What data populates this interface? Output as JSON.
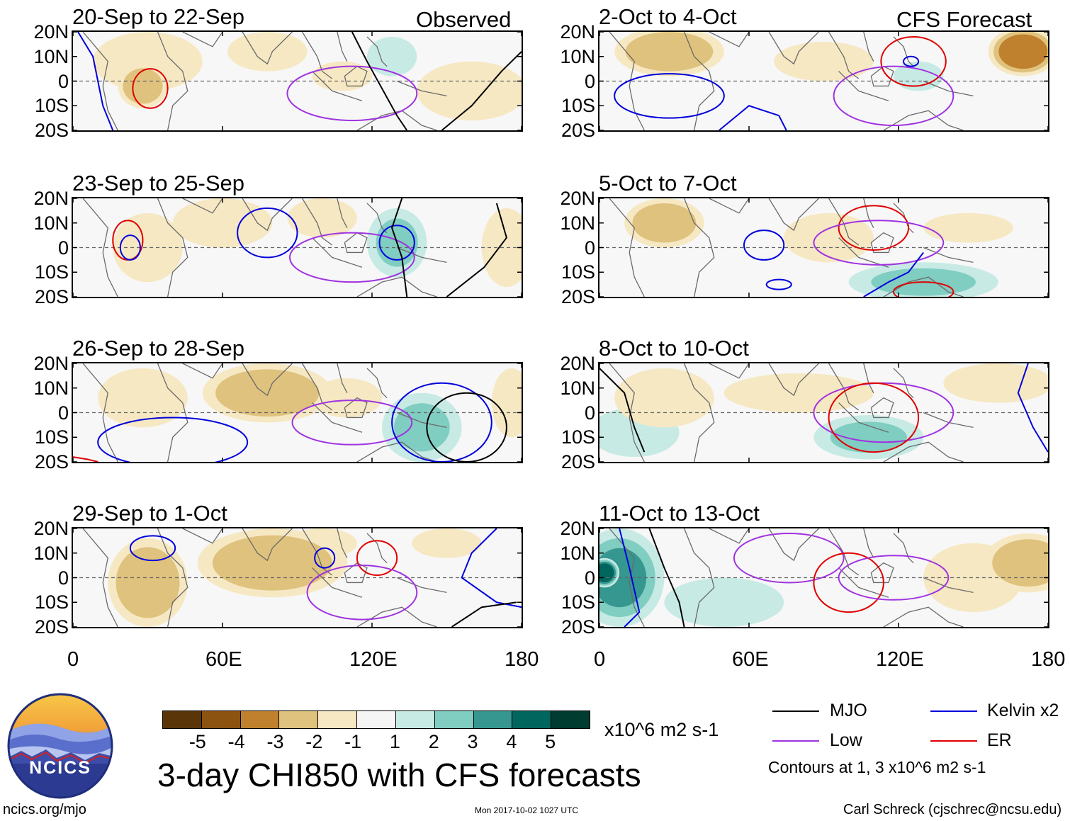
{
  "headers": {
    "observed": "Observed",
    "forecast": "CFS Forecast"
  },
  "chart_data": {
    "type": "heatmap",
    "title": "3-day CHI850 with CFS forecasts",
    "units": "x10^6 m2 s-1",
    "lat_labels": [
      "20N",
      "10N",
      "0",
      "10S",
      "20S"
    ],
    "lon_labels": [
      "0",
      "60E",
      "120E",
      "180"
    ],
    "xlim": [
      0,
      180
    ],
    "ylim": [
      -20,
      20
    ],
    "colorbar": {
      "ticks": [
        "-5",
        "-4",
        "-3",
        "-2",
        "-1",
        "1",
        "2",
        "3",
        "4",
        "5"
      ],
      "colors": [
        "#5a3508",
        "#8c520f",
        "#bf812d",
        "#dfc27d",
        "#f6e8c3",
        "#f5f5f5",
        "#c7eae5",
        "#80cdc1",
        "#35978f",
        "#01665e",
        "#003c30"
      ]
    },
    "legend": [
      {
        "label": "MJO",
        "color": "#000000"
      },
      {
        "label": "Kelvin x2",
        "color": "#0000dd"
      },
      {
        "label": "Low",
        "color": "#a033e0"
      },
      {
        "label": "ER",
        "color": "#e00000"
      }
    ],
    "contour_note": "Contours at 1, 3 x10^6 m2 s-1",
    "panels": [
      {
        "id": "obs1",
        "kind": "observed",
        "title": "20-Sep to 22-Sep",
        "blobs": [
          {
            "lon": 30,
            "lat": 8,
            "rlon": 22,
            "rlat": 12,
            "v": -2
          },
          {
            "lon": 28,
            "lat": -2,
            "rlon": 10,
            "rlat": 9,
            "v": -3
          },
          {
            "lon": 78,
            "lat": 12,
            "rlon": 16,
            "rlat": 8,
            "v": -1.5
          },
          {
            "lon": 108,
            "lat": 2,
            "rlon": 12,
            "rlat": 6,
            "v": -1.5
          },
          {
            "lon": 128,
            "lat": 10,
            "rlon": 10,
            "rlat": 8,
            "v": 1.5
          },
          {
            "lon": 160,
            "lat": -4,
            "rlon": 22,
            "rlat": 12,
            "v": -1.5
          }
        ],
        "contours": [
          {
            "type": "ER",
            "lon": 31,
            "lat": -3,
            "rlon": 7,
            "rlat": 8
          },
          {
            "type": "Low",
            "lon": 112,
            "lat": -5,
            "rlon": 26,
            "rlat": 11
          },
          {
            "type": "MJO",
            "path": [
              [
                112,
                20
              ],
              [
                118,
                8
              ],
              [
                124,
                -3
              ],
              [
                130,
                -14
              ],
              [
                134,
                -20
              ]
            ]
          },
          {
            "type": "MJO",
            "path": [
              [
                148,
                -20
              ],
              [
                160,
                -10
              ],
              [
                172,
                4
              ],
              [
                180,
                12
              ]
            ]
          },
          {
            "type": "Kelvin",
            "path": [
              [
                2,
                20
              ],
              [
                8,
                10
              ],
              [
                10,
                0
              ],
              [
                12,
                -10
              ],
              [
                16,
                -20
              ]
            ]
          }
        ]
      },
      {
        "id": "obs2",
        "kind": "observed",
        "title": "23-Sep to 25-Sep",
        "blobs": [
          {
            "lon": 30,
            "lat": 0,
            "rlon": 14,
            "rlat": 14,
            "v": -1.5
          },
          {
            "lon": 60,
            "lat": 10,
            "rlon": 20,
            "rlat": 10,
            "v": -1.5
          },
          {
            "lon": 100,
            "lat": 12,
            "rlon": 14,
            "rlat": 8,
            "v": -1.5
          },
          {
            "lon": 130,
            "lat": 2,
            "rlon": 12,
            "rlat": 14,
            "v": 2
          },
          {
            "lon": 174,
            "lat": 0,
            "rlon": 10,
            "rlat": 16,
            "v": -2
          }
        ],
        "contours": [
          {
            "type": "ER",
            "lon": 22,
            "lat": 3,
            "rlon": 6,
            "rlat": 8
          },
          {
            "type": "Kelvin",
            "lon": 23,
            "lat": 0,
            "rlon": 4,
            "rlat": 5
          },
          {
            "type": "Kelvin",
            "lon": 78,
            "lat": 6,
            "rlon": 12,
            "rlat": 10
          },
          {
            "type": "Low",
            "lon": 112,
            "lat": -4,
            "rlon": 25,
            "rlat": 10
          },
          {
            "type": "Kelvin",
            "lon": 130,
            "lat": 2,
            "rlon": 7,
            "rlat": 7
          },
          {
            "type": "MJO",
            "path": [
              [
                132,
                20
              ],
              [
                128,
                8
              ],
              [
                132,
                -4
              ],
              [
                134,
                -20
              ]
            ]
          },
          {
            "type": "MJO",
            "path": [
              [
                150,
                -20
              ],
              [
                165,
                -8
              ],
              [
                174,
                4
              ],
              [
                170,
                18
              ]
            ]
          }
        ]
      },
      {
        "id": "obs3",
        "kind": "observed",
        "title": "26-Sep to 28-Sep",
        "blobs": [
          {
            "lon": 28,
            "lat": 6,
            "rlon": 18,
            "rlat": 12,
            "v": -1.5
          },
          {
            "lon": 78,
            "lat": 8,
            "rlon": 26,
            "rlat": 12,
            "v": -2.5
          },
          {
            "lon": 110,
            "lat": 6,
            "rlon": 14,
            "rlat": 8,
            "v": -1.5
          },
          {
            "lon": 140,
            "lat": -6,
            "rlon": 16,
            "rlat": 14,
            "v": 2
          },
          {
            "lon": 176,
            "lat": 4,
            "rlon": 8,
            "rlat": 14,
            "v": -1.5
          }
        ],
        "contours": [
          {
            "type": "Low",
            "lon": 112,
            "lat": -4,
            "rlon": 24,
            "rlat": 9
          },
          {
            "type": "Kelvin",
            "lon": 40,
            "lat": -12,
            "rlon": 30,
            "rlat": 10
          },
          {
            "type": "Kelvin",
            "lon": 148,
            "lat": -4,
            "rlon": 20,
            "rlat": 16
          },
          {
            "type": "MJO",
            "lon": 158,
            "lat": -6,
            "rlon": 16,
            "rlat": 14
          },
          {
            "type": "ER",
            "path": [
              [
                0,
                -18
              ],
              [
                6,
                -19
              ],
              [
                10,
                -20
              ]
            ]
          }
        ]
      },
      {
        "id": "obs4",
        "kind": "observed",
        "title": "29-Sep to 1-Oct",
        "blobs": [
          {
            "lon": 30,
            "lat": -2,
            "rlon": 16,
            "rlat": 18,
            "v": -3
          },
          {
            "lon": 80,
            "lat": 6,
            "rlon": 30,
            "rlat": 14,
            "v": -3
          },
          {
            "lon": 100,
            "lat": 14,
            "rlon": 14,
            "rlat": 6,
            "v": -1.5
          },
          {
            "lon": 150,
            "lat": 14,
            "rlon": 14,
            "rlat": 6,
            "v": -1.5
          }
        ],
        "contours": [
          {
            "type": "Kelvin",
            "lon": 32,
            "lat": 12,
            "rlon": 9,
            "rlat": 5
          },
          {
            "type": "Kelvin",
            "lon": 101,
            "lat": 8,
            "rlon": 4,
            "rlat": 4
          },
          {
            "type": "ER",
            "lon": 122,
            "lat": 8,
            "rlon": 8,
            "rlat": 7
          },
          {
            "type": "Low",
            "lon": 116,
            "lat": -6,
            "rlon": 22,
            "rlat": 11
          },
          {
            "type": "Kelvin",
            "path": [
              [
                170,
                20
              ],
              [
                160,
                10
              ],
              [
                156,
                0
              ],
              [
                170,
                -10
              ],
              [
                180,
                -12
              ]
            ]
          },
          {
            "type": "MJO",
            "path": [
              [
                152,
                -20
              ],
              [
                164,
                -12
              ],
              [
                178,
                -10
              ]
            ]
          }
        ]
      },
      {
        "id": "fc1",
        "kind": "forecast",
        "title": "2-Oct to 4-Oct",
        "blobs": [
          {
            "lon": 28,
            "lat": 12,
            "rlon": 22,
            "rlat": 10,
            "v": -2.5
          },
          {
            "lon": 90,
            "lat": 8,
            "rlon": 20,
            "rlat": 8,
            "v": -1.5
          },
          {
            "lon": 170,
            "lat": 12,
            "rlon": 14,
            "rlat": 10,
            "v": -4
          },
          {
            "lon": 128,
            "lat": 2,
            "rlon": 10,
            "rlat": 6,
            "v": 1.5
          }
        ],
        "contours": [
          {
            "type": "ER",
            "lon": 126,
            "lat": 8,
            "rlon": 13,
            "rlat": 10
          },
          {
            "type": "Kelvin",
            "lon": 125,
            "lat": 8,
            "rlon": 3,
            "rlat": 2
          },
          {
            "type": "Low",
            "lon": 118,
            "lat": -6,
            "rlon": 24,
            "rlat": 12
          },
          {
            "type": "Kelvin",
            "lon": 28,
            "lat": -6,
            "rlon": 22,
            "rlat": 9
          },
          {
            "type": "Kelvin",
            "path": [
              [
                48,
                -20
              ],
              [
                60,
                -10
              ],
              [
                72,
                -14
              ],
              [
                75,
                -20
              ]
            ]
          }
        ]
      },
      {
        "id": "fc2",
        "kind": "forecast",
        "title": "5-Oct to 7-Oct",
        "blobs": [
          {
            "lon": 26,
            "lat": 10,
            "rlon": 16,
            "rlat": 10,
            "v": -2.5
          },
          {
            "lon": 92,
            "lat": 4,
            "rlon": 18,
            "rlat": 10,
            "v": -1.5
          },
          {
            "lon": 148,
            "lat": 8,
            "rlon": 18,
            "rlat": 6,
            "v": -1.5
          },
          {
            "lon": 130,
            "lat": -14,
            "rlon": 30,
            "rlat": 8,
            "v": 2
          }
        ],
        "contours": [
          {
            "type": "Kelvin",
            "lon": 66,
            "lat": 1,
            "rlon": 8,
            "rlat": 6
          },
          {
            "type": "Kelvin",
            "lon": 72,
            "lat": -15,
            "rlon": 5,
            "rlat": 2
          },
          {
            "type": "ER",
            "lon": 110,
            "lat": 8,
            "rlon": 14,
            "rlat": 9
          },
          {
            "type": "Low",
            "lon": 112,
            "lat": 2,
            "rlon": 26,
            "rlat": 9
          },
          {
            "type": "ER",
            "lon": 130,
            "lat": -18,
            "rlon": 12,
            "rlat": 4
          },
          {
            "type": "Kelvin",
            "path": [
              [
                106,
                -20
              ],
              [
                116,
                -14
              ],
              [
                124,
                -10
              ],
              [
                130,
                -2
              ]
            ]
          }
        ]
      },
      {
        "id": "fc3",
        "kind": "forecast",
        "title": "8-Oct to 10-Oct",
        "blobs": [
          {
            "lon": 26,
            "lat": 6,
            "rlon": 20,
            "rlat": 12,
            "v": -2
          },
          {
            "lon": 80,
            "lat": 8,
            "rlon": 30,
            "rlat": 8,
            "v": -1.5
          },
          {
            "lon": 160,
            "lat": 12,
            "rlon": 22,
            "rlat": 8,
            "v": -1.5
          },
          {
            "lon": 108,
            "lat": -10,
            "rlon": 22,
            "rlat": 9,
            "v": 2
          },
          {
            "lon": 14,
            "lat": -8,
            "rlon": 18,
            "rlat": 10,
            "v": 1.5
          }
        ],
        "contours": [
          {
            "type": "Low",
            "lon": 114,
            "lat": 0,
            "rlon": 28,
            "rlat": 12
          },
          {
            "type": "ER",
            "lon": 110,
            "lat": -2,
            "rlon": 18,
            "rlat": 14
          },
          {
            "type": "MJO",
            "path": [
              [
                0,
                18
              ],
              [
                10,
                8
              ],
              [
                14,
                -6
              ],
              [
                18,
                -16
              ]
            ]
          },
          {
            "type": "Kelvin",
            "path": [
              [
                172,
                20
              ],
              [
                168,
                8
              ],
              [
                174,
                -6
              ],
              [
                180,
                -16
              ]
            ]
          }
        ]
      },
      {
        "id": "fc4",
        "kind": "forecast",
        "title": "11-Oct to 13-Oct",
        "blobs": [
          {
            "lon": 8,
            "lat": 0,
            "rlon": 18,
            "rlat": 20,
            "v": 3
          },
          {
            "lon": 2,
            "lat": 2,
            "rlon": 6,
            "rlat": 6,
            "v": 4.5
          },
          {
            "lon": 50,
            "lat": -10,
            "rlon": 24,
            "rlat": 10,
            "v": 1.5
          },
          {
            "lon": 172,
            "lat": 6,
            "rlon": 18,
            "rlat": 12,
            "v": -2.5
          },
          {
            "lon": 150,
            "lat": 0,
            "rlon": 20,
            "rlat": 14,
            "v": -1.5
          }
        ],
        "contours": [
          {
            "type": "Low",
            "lon": 76,
            "lat": 8,
            "rlon": 22,
            "rlat": 10
          },
          {
            "type": "ER",
            "lon": 100,
            "lat": -2,
            "rlon": 14,
            "rlat": 12
          },
          {
            "type": "Low",
            "lon": 118,
            "lat": 0,
            "rlon": 22,
            "rlat": 9
          },
          {
            "type": "MJO",
            "path": [
              [
                20,
                20
              ],
              [
                26,
                4
              ],
              [
                32,
                -10
              ],
              [
                34,
                -20
              ]
            ]
          },
          {
            "type": "Kelvin",
            "path": [
              [
                8,
                20
              ],
              [
                12,
                4
              ],
              [
                16,
                -14
              ],
              [
                10,
                -20
              ]
            ]
          }
        ]
      }
    ]
  },
  "logo_text": "NCICS",
  "footer": {
    "url": "ncics.org/mjo",
    "timestamp": "Mon 2017-10-02 1027 UTC",
    "credit": "Carl Schreck (cjschrec@ncsu.edu)"
  }
}
